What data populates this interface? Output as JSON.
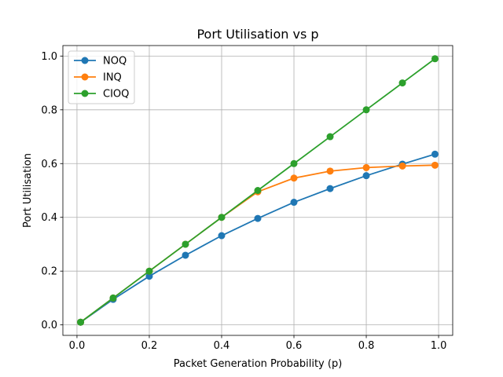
{
  "chart_data": {
    "type": "line",
    "title": "Port Utilisation vs p",
    "xlabel": "Packet Generation Probability (p)",
    "ylabel": "Port Utilisation",
    "xlim": [
      -0.039,
      1.039
    ],
    "ylim": [
      -0.039,
      1.039
    ],
    "grid": true,
    "legend_position": "top-left",
    "x": [
      0.01,
      0.1,
      0.2,
      0.3,
      0.4,
      0.5,
      0.6,
      0.7,
      0.8,
      0.9,
      0.99
    ],
    "xticks": [
      0.0,
      0.2,
      0.4,
      0.6,
      0.8,
      1.0
    ],
    "xtick_labels": [
      "0.0",
      "0.2",
      "0.4",
      "0.6",
      "0.8",
      "1.0"
    ],
    "yticks": [
      0.0,
      0.2,
      0.4,
      0.6,
      0.8,
      1.0
    ],
    "ytick_labels": [
      "0.0",
      "0.2",
      "0.4",
      "0.6",
      "0.8",
      "1.0"
    ],
    "series": [
      {
        "name": "NOQ",
        "color": "#1f77b4",
        "values": [
          0.01,
          0.095,
          0.181,
          0.259,
          0.332,
          0.396,
          0.456,
          0.507,
          0.555,
          0.598,
          0.635
        ]
      },
      {
        "name": "INQ",
        "color": "#ff7f0e",
        "values": [
          0.01,
          0.1,
          0.2,
          0.3,
          0.4,
          0.495,
          0.546,
          0.572,
          0.585,
          0.591,
          0.594
        ]
      },
      {
        "name": "CIOQ",
        "color": "#2ca02c",
        "values": [
          0.01,
          0.1,
          0.2,
          0.3,
          0.4,
          0.5,
          0.6,
          0.7,
          0.8,
          0.9,
          0.99
        ]
      }
    ]
  }
}
